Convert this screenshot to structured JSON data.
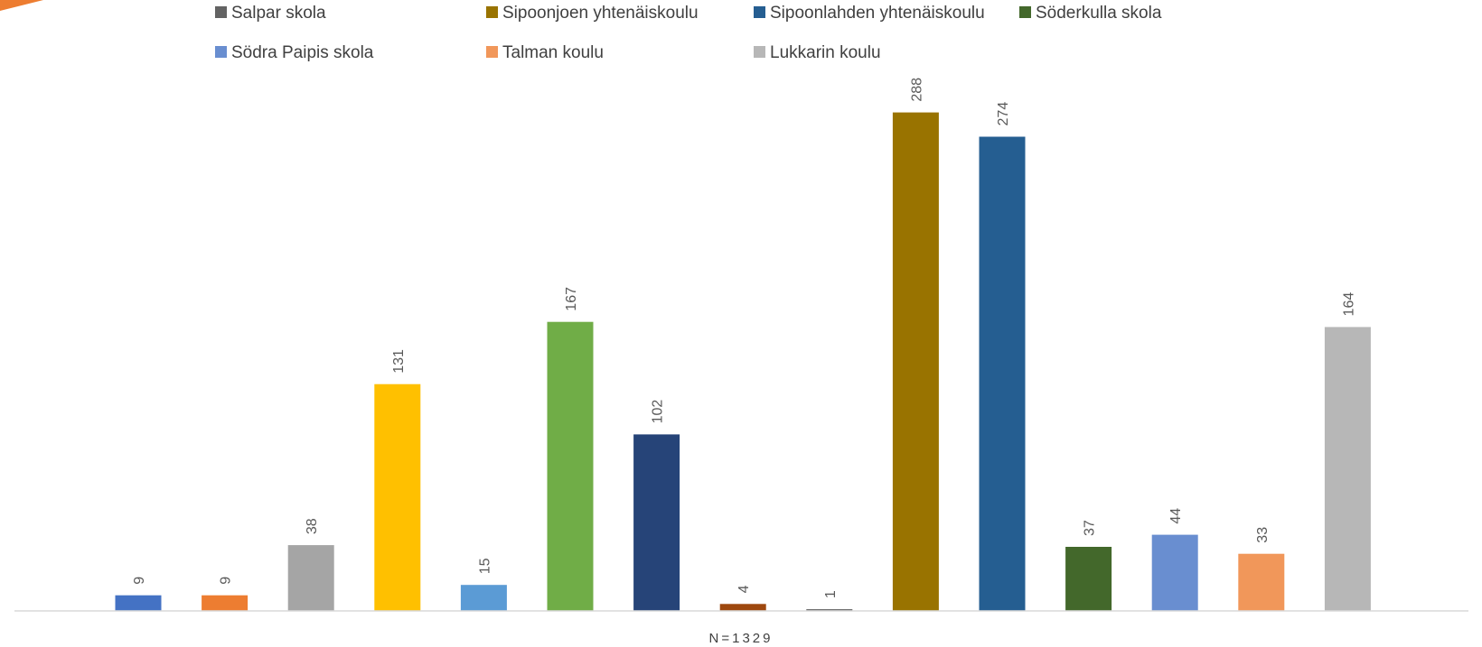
{
  "chart_data": {
    "type": "bar",
    "title": "",
    "xlabel": "",
    "ylabel": "",
    "ylim": [
      0,
      300
    ],
    "grid": false,
    "legend_position": "top",
    "value_labels": "rotated",
    "footnote": "N=1329",
    "series": [
      {
        "name": "",
        "value": 9,
        "color": "#4472C4"
      },
      {
        "name": "",
        "value": 9,
        "color": "#ED7D31"
      },
      {
        "name": "",
        "value": 38,
        "color": "#A5A5A5"
      },
      {
        "name": "",
        "value": 131,
        "color": "#FFC000"
      },
      {
        "name": "",
        "value": 15,
        "color": "#5B9BD5"
      },
      {
        "name": "",
        "value": 167,
        "color": "#70AD47"
      },
      {
        "name": "",
        "value": 102,
        "color": "#264478"
      },
      {
        "name": "",
        "value": 4,
        "color": "#9E480E"
      },
      {
        "name": "Salpar skola",
        "value": 1,
        "color": "#636363"
      },
      {
        "name": "Sipoonjoen yhtenäiskoulu",
        "value": 288,
        "color": "#997300"
      },
      {
        "name": "Sipoonlahden yhtenäiskoulu",
        "value": 274,
        "color": "#255E91"
      },
      {
        "name": "Söderkulla skola",
        "value": 37,
        "color": "#43682B"
      },
      {
        "name": "Södra Paipis skola",
        "value": 44,
        "color": "#698ED0"
      },
      {
        "name": "Talman koulu",
        "value": 33,
        "color": "#F1975A"
      },
      {
        "name": "Lukkarin koulu",
        "value": 164,
        "color": "#B7B7B7"
      }
    ]
  },
  "decor": {
    "corner_color": "#ED7D31",
    "axis_color": "#D9D9D9"
  }
}
